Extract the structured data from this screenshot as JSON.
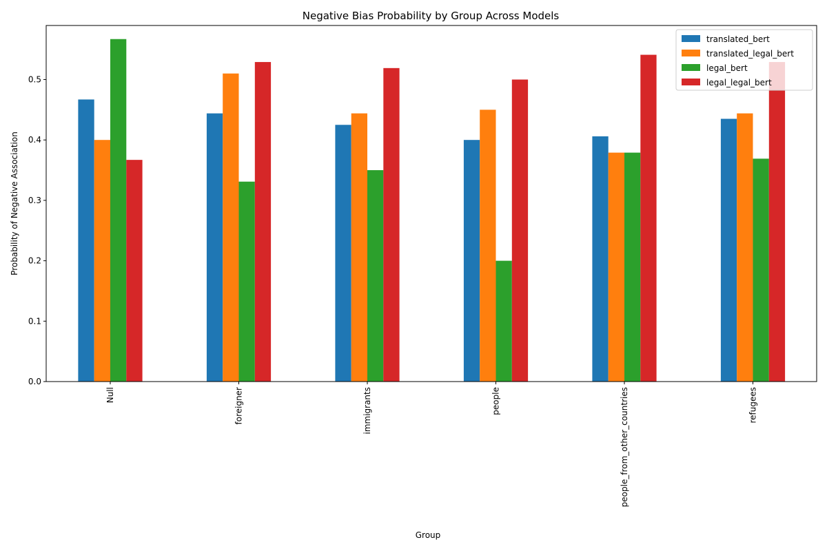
{
  "chart_data": {
    "type": "bar",
    "title": "Negative Bias Probability by Group Across Models",
    "xlabel": "Group",
    "ylabel": "Probability of Negative Association",
    "categories": [
      "Null",
      "foreigner",
      "immigrants",
      "people",
      "people_from_other_countries",
      "refugees"
    ],
    "series": [
      {
        "name": "translated_bert",
        "color": "#1f77b4",
        "values": [
          0.467,
          0.444,
          0.425,
          0.4,
          0.406,
          0.435
        ]
      },
      {
        "name": "translated_legal_bert",
        "color": "#ff7f0e",
        "values": [
          0.4,
          0.51,
          0.444,
          0.45,
          0.379,
          0.444
        ]
      },
      {
        "name": "legal_bert",
        "color": "#2ca02c",
        "values": [
          0.567,
          0.331,
          0.35,
          0.2,
          0.379,
          0.369
        ]
      },
      {
        "name": "legal_legal_bert",
        "color": "#d62728",
        "values": [
          0.367,
          0.529,
          0.519,
          0.5,
          0.541,
          0.529
        ]
      }
    ],
    "ylim": [
      0,
      0.5895
    ],
    "yticks": [
      "0.0",
      "0.1",
      "0.2",
      "0.3",
      "0.4",
      "0.5"
    ],
    "grid": false,
    "legend_position": "top-right"
  }
}
